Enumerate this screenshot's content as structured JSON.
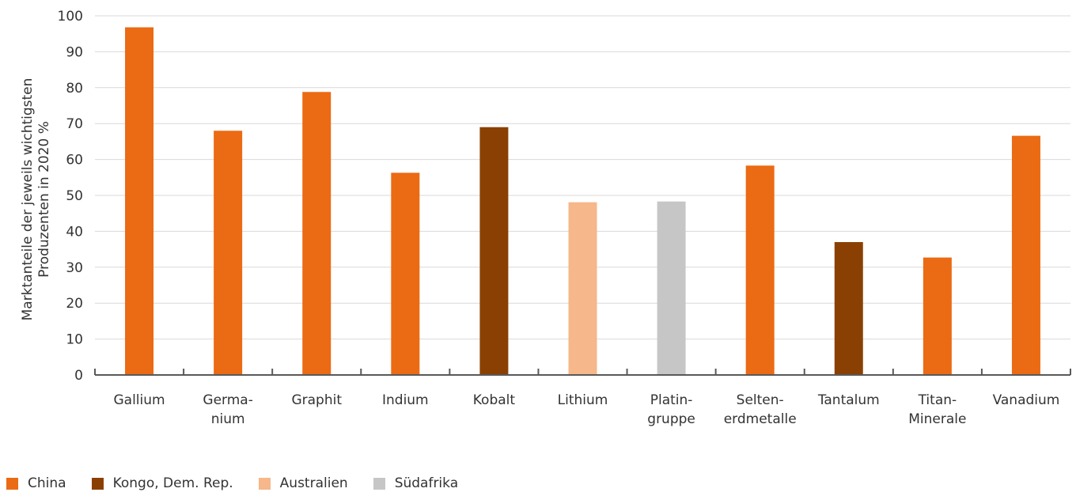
{
  "chart_data": {
    "type": "bar",
    "title": "",
    "xlabel": "",
    "ylabel": "Marktanteile der jeweils wichtigsten Produzenten in 2020 %",
    "ylabel_lines": [
      "Marktanteile der jeweils wichtigsten",
      "Produzenten in 2020 %"
    ],
    "ylim": [
      0,
      100
    ],
    "yticks": [
      0,
      10,
      20,
      30,
      40,
      50,
      60,
      70,
      80,
      90,
      100
    ],
    "grid": true,
    "legend_position": "bottom-left",
    "categories": [
      {
        "lines": [
          "Gallium"
        ],
        "value": 96.8,
        "producer": "China"
      },
      {
        "lines": [
          "Germa-",
          "nium"
        ],
        "value": 68,
        "producer": "China"
      },
      {
        "lines": [
          "Graphit"
        ],
        "value": 78.8,
        "producer": "China"
      },
      {
        "lines": [
          "Indium"
        ],
        "value": 56.3,
        "producer": "China"
      },
      {
        "lines": [
          "Kobalt"
        ],
        "value": 69,
        "producer": "Kongo, Dem. Rep."
      },
      {
        "lines": [
          "Lithium"
        ],
        "value": 48.1,
        "producer": "Australien"
      },
      {
        "lines": [
          "Platin-",
          "gruppe"
        ],
        "value": 48.3,
        "producer": "Südafrika"
      },
      {
        "lines": [
          "Selten-",
          "erdmetalle"
        ],
        "value": 58.3,
        "producer": "China"
      },
      {
        "lines": [
          "Tantalum"
        ],
        "value": 37,
        "producer": "Kongo, Dem. Rep."
      },
      {
        "lines": [
          "Titan-",
          "Minerale"
        ],
        "value": 32.7,
        "producer": "China"
      },
      {
        "lines": [
          "Vanadium"
        ],
        "value": 66.6,
        "producer": "China"
      }
    ],
    "legend": [
      {
        "name": "China",
        "color": "#EB6A14"
      },
      {
        "name": "Kongo, Dem. Rep.",
        "color": "#8B4003"
      },
      {
        "name": "Australien",
        "color": "#F6B78A"
      },
      {
        "name": "Südafrika",
        "color": "#C6C6C6"
      }
    ]
  }
}
